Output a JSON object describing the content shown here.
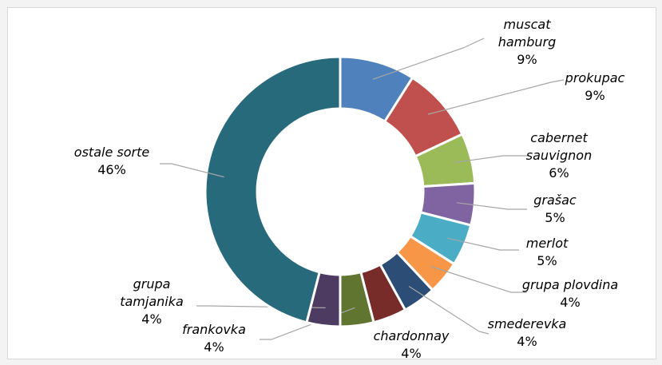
{
  "chart_data": {
    "type": "donut",
    "categories": [
      "muscat hamburg",
      "prokupac",
      "cabernet sauvignon",
      "grašac",
      "merlot",
      "grupa plovdina",
      "smederevka",
      "chardonnay",
      "frankovka",
      "grupa tamjanika",
      "ostale sorte"
    ],
    "values": [
      9,
      9,
      6,
      5,
      5,
      4,
      4,
      4,
      4,
      4,
      46
    ],
    "value_labels": [
      "9%",
      "9%",
      "6%",
      "5%",
      "5%",
      "4%",
      "4%",
      "4%",
      "4%",
      "4%",
      "46%"
    ],
    "colors": [
      "#4f81bd",
      "#c0504d",
      "#9bbb59",
      "#8064a2",
      "#4bacc6",
      "#f79646",
      "#2c4d75",
      "#772c2a",
      "#5f7530",
      "#4d3b62",
      "#276a7c"
    ]
  }
}
